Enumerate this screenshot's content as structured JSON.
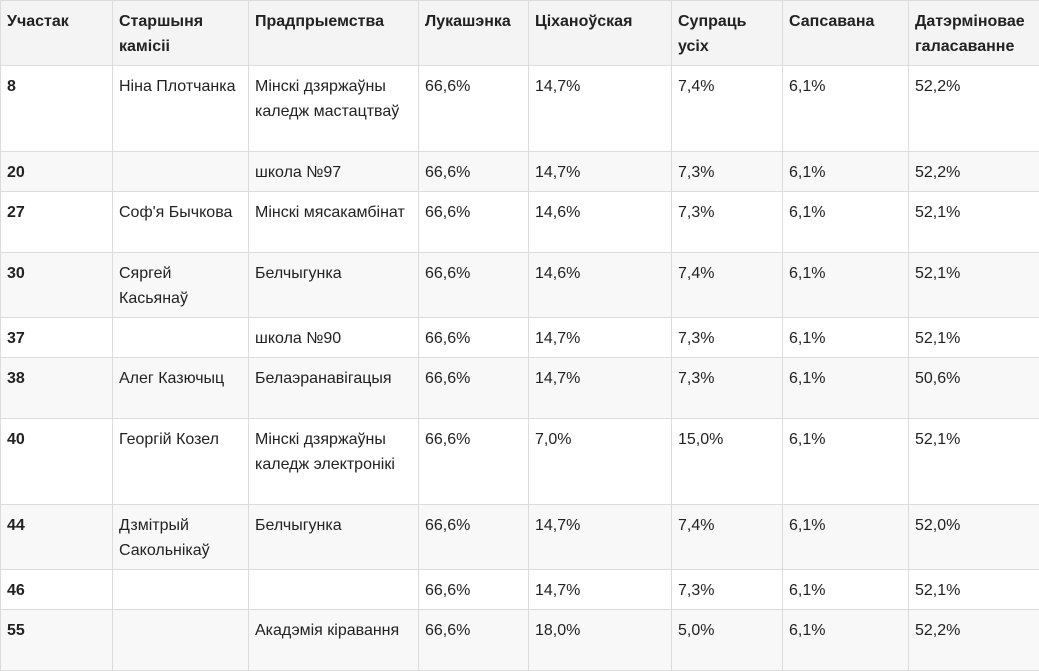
{
  "table": {
    "headers": [
      "Участак",
      "Старшыня камісіі",
      "Прадпрыемства",
      "Лукашэнка",
      "Ціханоўская",
      "Супраць усіх",
      "Сапсавана",
      "Датэрміновае галасаванне"
    ],
    "rows": [
      {
        "precinct": "8",
        "chair": "Ніна Плотчанка",
        "enterprise": "Мінскі дзяржаўны каледж мастацтваў",
        "lukashenko": "66,6%",
        "tsikhanouskaya": "14,7%",
        "against_all": "7,4%",
        "spoiled": "6,1%",
        "early_voting": "52,2%"
      },
      {
        "precinct": "20",
        "chair": "",
        "enterprise": "школа №97",
        "lukashenko": "66,6%",
        "tsikhanouskaya": "14,7%",
        "against_all": "7,3%",
        "spoiled": "6,1%",
        "early_voting": "52,2%"
      },
      {
        "precinct": "27",
        "chair": "Соф'я Бычкова",
        "enterprise": "Мінскі мясакамбінат",
        "lukashenko": "66,6%",
        "tsikhanouskaya": "14,6%",
        "against_all": "7,3%",
        "spoiled": "6,1%",
        "early_voting": "52,1%"
      },
      {
        "precinct": "30",
        "chair": "Сяргей Касьянаў",
        "enterprise": "Белчыгунка",
        "lukashenko": "66,6%",
        "tsikhanouskaya": "14,6%",
        "against_all": "7,4%",
        "spoiled": "6,1%",
        "early_voting": "52,1%"
      },
      {
        "precinct": "37",
        "chair": "",
        "enterprise": "школа №90",
        "lukashenko": "66,6%",
        "tsikhanouskaya": "14,7%",
        "against_all": "7,3%",
        "spoiled": "6,1%",
        "early_voting": "52,1%"
      },
      {
        "precinct": "38",
        "chair": "Алег Казючыц",
        "enterprise": "Белаэранавігацыя",
        "lukashenko": "66,6%",
        "tsikhanouskaya": "14,7%",
        "against_all": "7,3%",
        "spoiled": "6,1%",
        "early_voting": "50,6%"
      },
      {
        "precinct": "40",
        "chair": "Георгій Козел",
        "enterprise": "Мінскі дзяржаўны каледж электронікі",
        "lukashenko": "66,6%",
        "tsikhanouskaya": "7,0%",
        "against_all": "15,0%",
        "spoiled": "6,1%",
        "early_voting": "52,1%"
      },
      {
        "precinct": "44",
        "chair": "Дзмітрый Сакольнікаў",
        "enterprise": "Белчыгунка",
        "lukashenko": "66,6%",
        "tsikhanouskaya": "14,7%",
        "against_all": "7,4%",
        "spoiled": "6,1%",
        "early_voting": "52,0%"
      },
      {
        "precinct": "46",
        "chair": "",
        "enterprise": "",
        "lukashenko": "66,6%",
        "tsikhanouskaya": "14,7%",
        "against_all": "7,3%",
        "spoiled": "6,1%",
        "early_voting": "52,1%"
      },
      {
        "precinct": "55",
        "chair": "",
        "enterprise": "Акадэмія кіравання",
        "lukashenko": "66,6%",
        "tsikhanouskaya": "18,0%",
        "against_all": "5,0%",
        "spoiled": "6,1%",
        "early_voting": "52,2%"
      }
    ]
  }
}
